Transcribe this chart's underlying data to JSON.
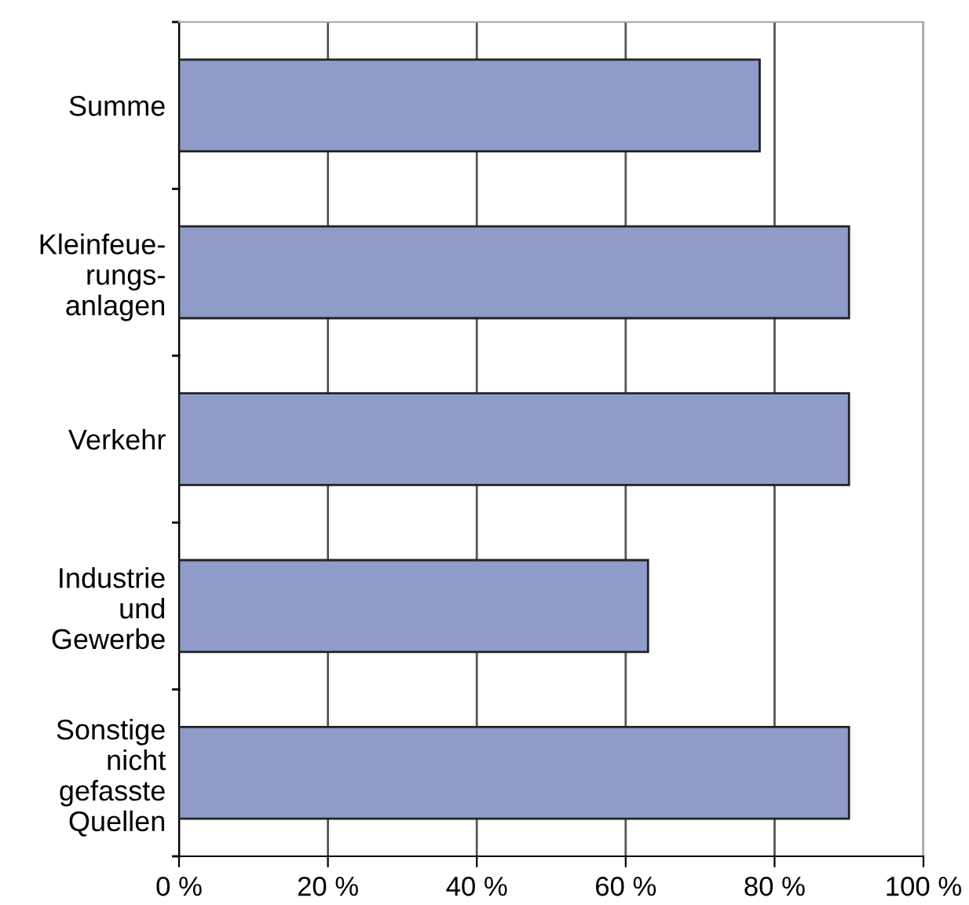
{
  "chart_data": {
    "type": "bar",
    "orientation": "horizontal",
    "categories": [
      "Summe",
      "Kleinfeue-\nrungs-\nanlagen",
      "Verkehr",
      "Industrie\nund\nGewerbe",
      "Sonstige\nnicht\ngefasste\nQuellen"
    ],
    "values": [
      78,
      90,
      90,
      63,
      90
    ],
    "color": "#8f9cca",
    "xlim": [
      0,
      100
    ],
    "xticks": [
      {
        "value": 0,
        "label": "0 %"
      },
      {
        "value": 20,
        "label": "20 %"
      },
      {
        "value": 40,
        "label": "40 %"
      },
      {
        "value": 60,
        "label": "60 %"
      },
      {
        "value": 80,
        "label": "80 %"
      },
      {
        "value": 100,
        "label": "100 %"
      }
    ],
    "grid": "x",
    "legend": false
  }
}
